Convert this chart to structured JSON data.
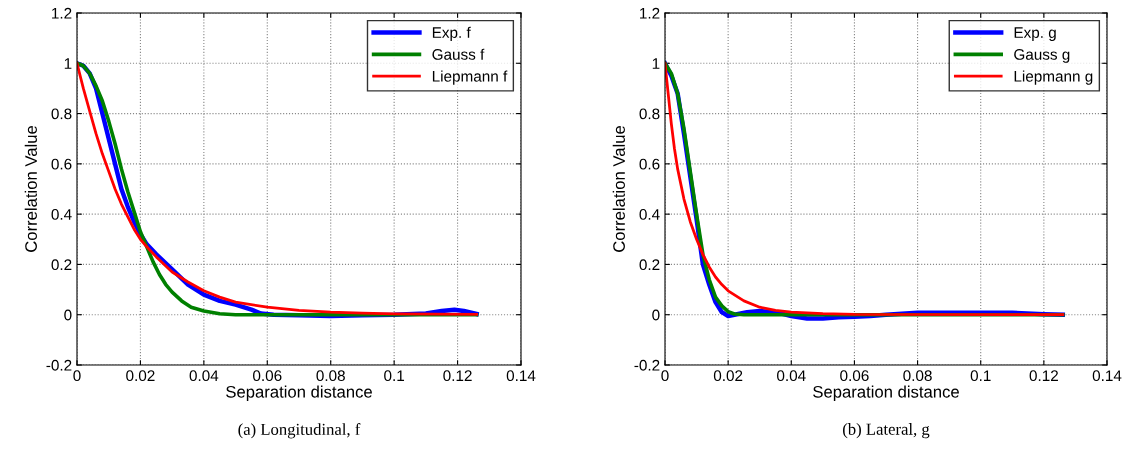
{
  "chart_data": [
    {
      "type": "line",
      "xlabel": "Separation distance",
      "ylabel": "Correlation Value",
      "annotations": [
        "(a) Longitudinal, f"
      ],
      "xlim": [
        0,
        0.14
      ],
      "ylim": [
        -0.2,
        1.2
      ],
      "xticks": [
        0,
        0.02,
        0.04,
        0.06,
        0.08,
        0.1,
        0.12,
        0.14
      ],
      "yticks": [
        -0.2,
        0,
        0.2,
        0.4,
        0.6,
        0.8,
        1,
        1.2
      ],
      "grid": true,
      "legend": "top right",
      "line_style": "solid",
      "series": [
        {
          "name": "Exp. f",
          "color": "#0000ff",
          "x": [
            0,
            0.002,
            0.004,
            0.006,
            0.008,
            0.01,
            0.012,
            0.014,
            0.016,
            0.018,
            0.02,
            0.022,
            0.025,
            0.03,
            0.035,
            0.04,
            0.045,
            0.05,
            0.055,
            0.058,
            0.062,
            0.07,
            0.08,
            0.09,
            0.1,
            0.11,
            0.115,
            0.119,
            0.122,
            0.126
          ],
          "values": [
            1,
            0.99,
            0.96,
            0.9,
            0.8,
            0.7,
            0.6,
            0.5,
            0.43,
            0.37,
            0.32,
            0.28,
            0.24,
            0.18,
            0.12,
            0.08,
            0.055,
            0.04,
            0.02,
            0.005,
            0,
            -0.002,
            -0.005,
            -0.002,
            0,
            0.005,
            0.015,
            0.02,
            0.015,
            0.003
          ]
        },
        {
          "name": "Gauss f",
          "color": "#008000",
          "x": [
            0,
            0.002,
            0.004,
            0.006,
            0.008,
            0.01,
            0.012,
            0.014,
            0.016,
            0.018,
            0.02,
            0.022,
            0.024,
            0.026,
            0.028,
            0.03,
            0.033,
            0.036,
            0.04,
            0.045,
            0.05,
            0.126
          ],
          "values": [
            1,
            0.99,
            0.96,
            0.91,
            0.85,
            0.77,
            0.68,
            0.58,
            0.49,
            0.41,
            0.33,
            0.27,
            0.21,
            0.16,
            0.12,
            0.09,
            0.055,
            0.03,
            0.015,
            0.004,
            0,
            0
          ]
        },
        {
          "name": "Liepmann f",
          "color": "#ff0000",
          "x": [
            0,
            0.002,
            0.004,
            0.006,
            0.008,
            0.01,
            0.012,
            0.014,
            0.016,
            0.018,
            0.02,
            0.022,
            0.025,
            0.03,
            0.035,
            0.04,
            0.045,
            0.05,
            0.06,
            0.07,
            0.08,
            0.09,
            0.1,
            0.126
          ],
          "values": [
            1,
            0.9,
            0.81,
            0.72,
            0.64,
            0.57,
            0.5,
            0.44,
            0.39,
            0.34,
            0.3,
            0.27,
            0.23,
            0.17,
            0.13,
            0.095,
            0.07,
            0.05,
            0.03,
            0.017,
            0.01,
            0.006,
            0.003,
            0.001
          ]
        }
      ]
    },
    {
      "type": "line",
      "xlabel": "Separation distance",
      "ylabel": "Correlation Value",
      "annotations": [
        "(b) Lateral, g"
      ],
      "xlim": [
        0,
        0.14
      ],
      "ylim": [
        -0.2,
        1.2
      ],
      "xticks": [
        0,
        0.02,
        0.04,
        0.06,
        0.08,
        0.1,
        0.12,
        0.14
      ],
      "yticks": [
        -0.2,
        0,
        0.2,
        0.4,
        0.6,
        0.8,
        1,
        1.2
      ],
      "grid": true,
      "legend": "top right",
      "line_style": "solid",
      "series": [
        {
          "name": "Exp. g",
          "color": "#0000ff",
          "x": [
            0,
            0.002,
            0.004,
            0.006,
            0.008,
            0.01,
            0.012,
            0.014,
            0.016,
            0.018,
            0.02,
            0.022,
            0.026,
            0.03,
            0.035,
            0.04,
            0.045,
            0.05,
            0.055,
            0.06,
            0.065,
            0.07,
            0.08,
            0.09,
            0.1,
            0.11,
            0.12,
            0.126
          ],
          "values": [
            1,
            0.95,
            0.88,
            0.72,
            0.55,
            0.38,
            0.2,
            0.12,
            0.05,
            0.01,
            -0.005,
            0,
            0.01,
            0.015,
            0.01,
            -0.005,
            -0.015,
            -0.015,
            -0.01,
            -0.008,
            -0.005,
            0,
            0.008,
            0.008,
            0.008,
            0.008,
            0.002,
            0
          ]
        },
        {
          "name": "Gauss g",
          "color": "#008000",
          "x": [
            0,
            0.002,
            0.004,
            0.006,
            0.008,
            0.01,
            0.012,
            0.014,
            0.016,
            0.018,
            0.02,
            0.022,
            0.025,
            0.126
          ],
          "values": [
            1,
            0.96,
            0.88,
            0.74,
            0.57,
            0.4,
            0.24,
            0.14,
            0.07,
            0.035,
            0.012,
            0.003,
            0,
            0
          ]
        },
        {
          "name": "Liepmann g",
          "color": "#ff0000",
          "x": [
            0,
            0.001,
            0.002,
            0.003,
            0.004,
            0.006,
            0.008,
            0.01,
            0.012,
            0.014,
            0.016,
            0.018,
            0.02,
            0.025,
            0.03,
            0.035,
            0.04,
            0.05,
            0.06,
            0.126
          ],
          "values": [
            1,
            0.88,
            0.76,
            0.66,
            0.58,
            0.46,
            0.37,
            0.3,
            0.24,
            0.19,
            0.15,
            0.12,
            0.095,
            0.055,
            0.03,
            0.017,
            0.01,
            0.004,
            0.001,
            0
          ]
        }
      ]
    }
  ]
}
